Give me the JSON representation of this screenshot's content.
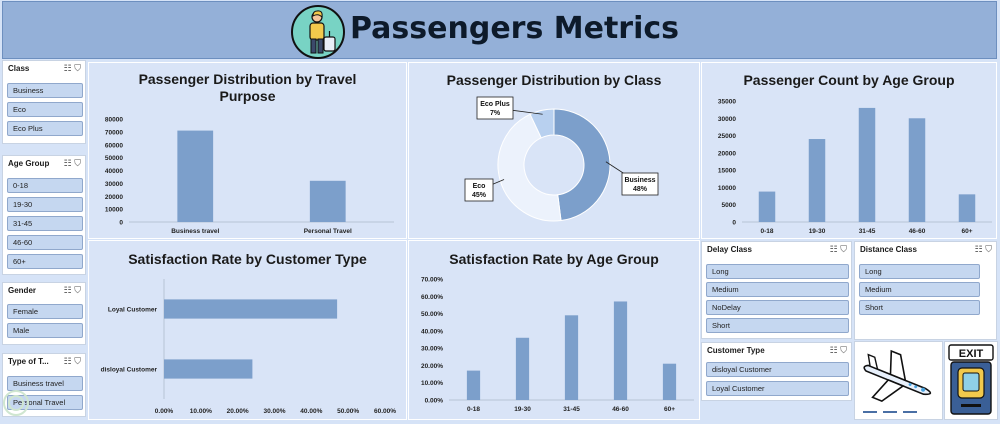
{
  "header": {
    "title": "Passengers Metrics"
  },
  "slicers": {
    "class": {
      "title": "Class",
      "items": [
        "Business",
        "Eco",
        "Eco Plus"
      ]
    },
    "age_group": {
      "title": "Age Group",
      "items": [
        "0-18",
        "19-30",
        "31-45",
        "46-60",
        "60+"
      ]
    },
    "gender": {
      "title": "Gender",
      "items": [
        "Female",
        "Male"
      ]
    },
    "type_of_travel": {
      "title": "Type of T...",
      "items": [
        "Business travel",
        "Personal Travel"
      ]
    },
    "delay_class": {
      "title": "Delay Class",
      "items": [
        "Long",
        "Medium",
        "NoDelay",
        "Short"
      ]
    },
    "distance_class": {
      "title": "Distance Class",
      "items": [
        "Long",
        "Medium",
        "Short"
      ]
    },
    "customer_type": {
      "title": "Customer Type",
      "items": [
        "disloyal Customer",
        "Loyal Customer"
      ]
    }
  },
  "images": {
    "exit_sign": "EXIT"
  },
  "colors": {
    "bar": "#7c9fcb",
    "business": "#7c9fcb",
    "eco": "#ecf2fc",
    "eco_plus": "#b8d0ef"
  },
  "chart_data": [
    {
      "id": "travel_purpose",
      "type": "bar",
      "title": "Passenger Distribution by Travel Purpose",
      "categories": [
        "Business travel",
        "Personal Travel"
      ],
      "values": [
        71000,
        32000
      ],
      "ylim": [
        0,
        80000
      ],
      "yticks": [
        "80000",
        "70000",
        "60000",
        "50000",
        "40000",
        "30000",
        "20000",
        "10000",
        "0"
      ]
    },
    {
      "id": "class_pie",
      "type": "pie",
      "title": "Passenger Distribution by Class",
      "slices": [
        {
          "label": "Business",
          "pct_text": "48%",
          "value": 48
        },
        {
          "label": "Eco",
          "pct_text": "45%",
          "value": 45
        },
        {
          "label": "Eco Plus",
          "pct_text": "7%",
          "value": 7
        }
      ]
    },
    {
      "id": "age_count",
      "type": "bar",
      "title": "Passenger Count by Age Group",
      "categories": [
        "0-18",
        "19-30",
        "31-45",
        "46-60",
        "60+"
      ],
      "values": [
        8800,
        24000,
        33000,
        30000,
        8000
      ],
      "ylim": [
        0,
        35000
      ],
      "yticks": [
        "35000",
        "30000",
        "25000",
        "20000",
        "15000",
        "10000",
        "5000",
        "0"
      ]
    },
    {
      "id": "cust_type",
      "type": "bar",
      "orientation": "horizontal",
      "title": "Satisfaction Rate by Customer Type",
      "categories": [
        "Loyal Customer",
        "disloyal Customer"
      ],
      "values": [
        0.47,
        0.24
      ],
      "xlim": [
        0,
        0.6
      ],
      "xticks": [
        "0.00%",
        "10.00%",
        "20.00%",
        "30.00%",
        "40.00%",
        "50.00%",
        "60.00%"
      ]
    },
    {
      "id": "age_sat",
      "type": "bar",
      "title": "Satisfaction Rate by Age Group",
      "categories": [
        "0-18",
        "19-30",
        "31-45",
        "46-60",
        "60+"
      ],
      "values": [
        0.17,
        0.36,
        0.49,
        0.57,
        0.21
      ],
      "ylim": [
        0,
        0.7
      ],
      "yticks": [
        "70.00%",
        "60.00%",
        "50.00%",
        "40.00%",
        "30.00%",
        "20.00%",
        "10.00%",
        "0.00%"
      ]
    }
  ]
}
